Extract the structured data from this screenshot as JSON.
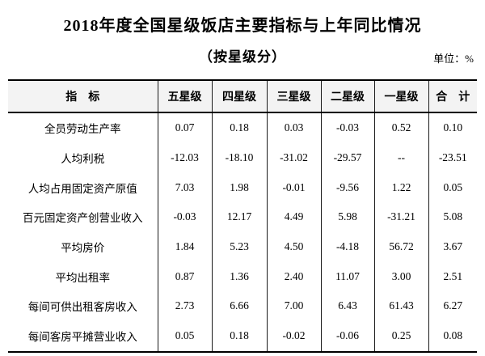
{
  "page": {
    "title": "2018年度全国星级饭店主要指标与上年同比情况",
    "subtitle": "（按星级分）",
    "unit_label": "单位：%"
  },
  "table": {
    "columns": [
      "指　标",
      "五星级",
      "四星级",
      "三星级",
      "二星级",
      "一星级",
      "合　计"
    ],
    "rows": [
      {
        "label": "全员劳动生产率",
        "values": [
          "0.07",
          "0.18",
          "0.03",
          "-0.03",
          "0.52",
          "0.10"
        ]
      },
      {
        "label": "人均利税",
        "values": [
          "-12.03",
          "-18.10",
          "-31.02",
          "-29.57",
          "--",
          "-23.51"
        ]
      },
      {
        "label": "人均占用固定资产原值",
        "values": [
          "7.03",
          "1.98",
          "-0.01",
          "-9.56",
          "1.22",
          "0.05"
        ]
      },
      {
        "label": "百元固定资产创营业收入",
        "values": [
          "-0.03",
          "12.17",
          "4.49",
          "5.98",
          "-31.21",
          "5.08"
        ]
      },
      {
        "label": "平均房价",
        "values": [
          "1.84",
          "5.23",
          "4.50",
          "-4.18",
          "56.72",
          "3.67"
        ]
      },
      {
        "label": "平均出租率",
        "values": [
          "0.87",
          "1.36",
          "2.40",
          "11.07",
          "3.00",
          "2.51"
        ]
      },
      {
        "label": "每间可供出租客房收入",
        "values": [
          "2.73",
          "6.66",
          "7.00",
          "6.43",
          "61.43",
          "6.27"
        ]
      },
      {
        "label": "每间客房平摊营业收入",
        "values": [
          "0.05",
          "0.18",
          "-0.02",
          "-0.06",
          "0.25",
          "0.08"
        ]
      }
    ]
  },
  "colors": {
    "text": "#000000",
    "border": "#000000",
    "header_background": "#f3f3f3",
    "page_background": "#ffffff"
  }
}
